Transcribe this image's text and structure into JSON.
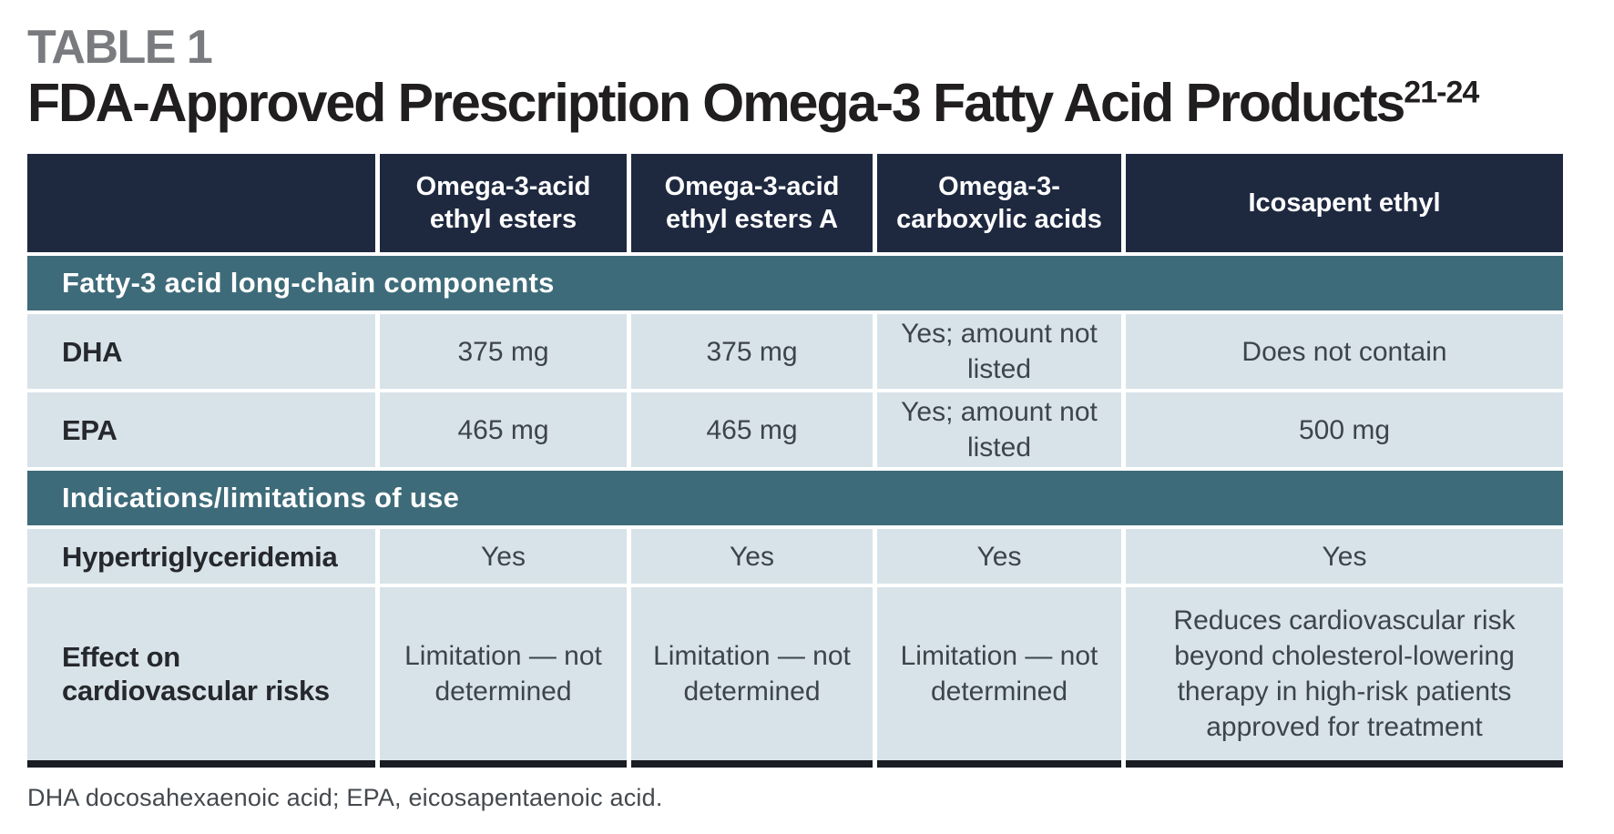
{
  "title": {
    "kicker": "TABLE 1",
    "main": "FDA-Approved Prescription Omega-3 Fatty Acid Products",
    "superscript": "21-24"
  },
  "colors": {
    "header_bg": "#1e2940",
    "section_bg": "#3e6b79",
    "row_bg": "#d8e3e9",
    "bottom_border": "#1a1d23",
    "kicker_gray": "#797b7e",
    "title_black": "#211e1f"
  },
  "table": {
    "column_headers": [
      "",
      "Omega-3-acid ethyl esters",
      "Omega-3-acid ethyl esters A",
      "Omega-3-carboxylic acids",
      "Icosapent ethyl"
    ],
    "sections": [
      {
        "label": "Fatty-3 acid long-chain components",
        "rows": [
          {
            "label": "DHA",
            "values": [
              "375 mg",
              "375 mg",
              "Yes; amount not listed",
              "Does not contain"
            ]
          },
          {
            "label": "EPA",
            "values": [
              "465 mg",
              "465 mg",
              "Yes; amount not listed",
              "500 mg"
            ]
          }
        ]
      },
      {
        "label": "Indications/limitations of use",
        "rows": [
          {
            "label": "Hypertriglyceridemia",
            "values": [
              "Yes",
              "Yes",
              "Yes",
              "Yes"
            ]
          },
          {
            "label": "Effect on cardiovascular risks",
            "values": [
              "Limitation — not determined",
              "Limitation — not determined",
              "Limitation — not determined",
              "Reduces cardiovascular risk beyond cholesterol-lowering therapy in high-risk patients approved for treatment"
            ]
          }
        ]
      }
    ],
    "footnote": "DHA docosahexaenoic acid; EPA, eicosapentaenoic acid."
  }
}
